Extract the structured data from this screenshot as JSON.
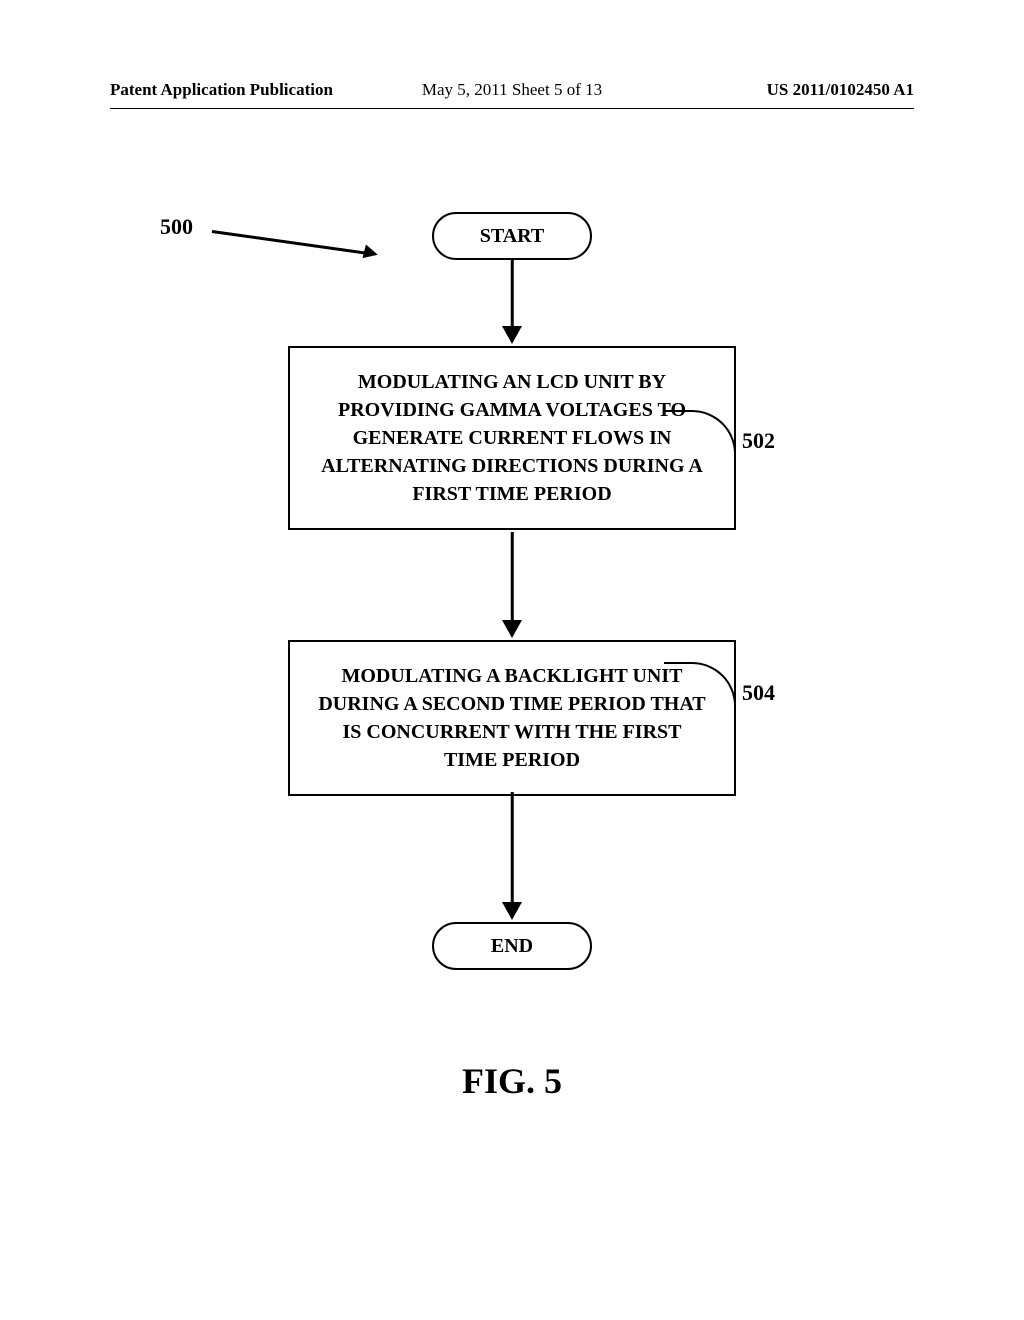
{
  "header": {
    "left": "Patent Application Publication",
    "middle": "May 5, 2011  Sheet 5 of 13",
    "right": "US 2011/0102450 A1"
  },
  "flowchart": {
    "type": "flowchart",
    "background_color": "#ffffff",
    "stroke_color": "#000000",
    "stroke_width": 2.5,
    "font_family": "Times New Roman",
    "title_fontsize": 20,
    "node_fontsize_pt": 20,
    "ref_fontsize_pt": 22,
    "nodes": [
      {
        "id": "start",
        "kind": "terminator",
        "label": "START"
      },
      {
        "id": "p1",
        "kind": "process",
        "ref": "502",
        "label": "MODULATING AN LCD UNIT BY PROVIDING GAMMA VOLTAGES TO GENERATE CURRENT FLOWS IN ALTERNATING DIRECTIONS DURING A FIRST TIME PERIOD"
      },
      {
        "id": "p2",
        "kind": "process",
        "ref": "504",
        "label": "MODULATING A BACKLIGHT UNIT DURING A SECOND TIME PERIOD THAT IS CONCURRENT WITH THE FIRST TIME PERIOD"
      },
      {
        "id": "end",
        "kind": "terminator",
        "label": "END"
      }
    ],
    "edges": [
      {
        "from": "start",
        "to": "p1"
      },
      {
        "from": "p1",
        "to": "p2"
      },
      {
        "from": "p2",
        "to": "end"
      }
    ],
    "diagram_ref": "500"
  },
  "figure_caption": "FIG. 5"
}
